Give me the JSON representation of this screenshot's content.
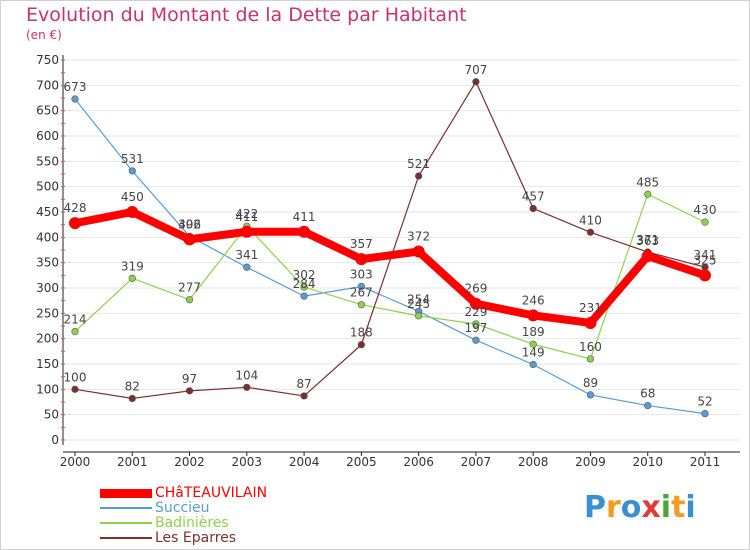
{
  "title": "Evolution du Montant de la Dette par Habitant",
  "subtitle": "(en €)",
  "logo": {
    "letters": [
      "P",
      "r",
      "o",
      "x",
      "i",
      "t",
      "i"
    ],
    "colors": [
      "#3a8fd0",
      "#f39c20",
      "#3a8fd0",
      "#e23b3b",
      "#4aa53a",
      "#f39c20",
      "#3a8fd0"
    ]
  },
  "chart_data": {
    "type": "line",
    "title": "Evolution du Montant de la Dette par Habitant",
    "ylabel": "(en €)",
    "xlabel": "",
    "x": [
      "2000",
      "2001",
      "2002",
      "2003",
      "2004",
      "2005",
      "2006",
      "2007",
      "2008",
      "2009",
      "2010",
      "2011"
    ],
    "ylim": [
      0,
      750
    ],
    "yticks": [
      0,
      50,
      100,
      150,
      200,
      250,
      300,
      350,
      400,
      450,
      500,
      550,
      600,
      650,
      700,
      750
    ],
    "legend_position": "bottom-left",
    "series": [
      {
        "name": "CHâTEAUVILAIN",
        "color": "#ff0000",
        "values": [
          428,
          450,
          396,
          411,
          411,
          357,
          372,
          269,
          246,
          231,
          363,
          325
        ],
        "labels": [
          "428",
          "450",
          "396",
          "411",
          "411",
          "357",
          "372",
          "269",
          "246",
          "231",
          "363",
          "325"
        ]
      },
      {
        "name": "Succieu",
        "color": "#5b9bd5",
        "values": [
          673,
          531,
          402,
          341,
          284,
          303,
          254,
          197,
          149,
          89,
          68,
          52
        ],
        "labels": [
          "673",
          "531",
          "402",
          "341",
          "284",
          "303",
          "254",
          "197",
          "149",
          "89",
          "68",
          "52"
        ]
      },
      {
        "name": "Badinières",
        "color": "#8fd14f",
        "values": [
          214,
          319,
          277,
          422,
          302,
          267,
          245,
          229,
          189,
          160,
          485,
          430
        ],
        "labels": [
          "214",
          "319",
          "277",
          "422",
          "302",
          "267",
          "245",
          "229",
          "189",
          "160",
          "485",
          "430"
        ]
      },
      {
        "name": "Les Eparres",
        "color": "#7b2f2f",
        "values": [
          100,
          82,
          97,
          104,
          87,
          188,
          521,
          707,
          457,
          410,
          371,
          341
        ],
        "labels": [
          "100",
          "82",
          "97",
          "104",
          "87",
          "188",
          "521",
          "707",
          "457",
          "410",
          "371",
          "341"
        ]
      }
    ]
  }
}
